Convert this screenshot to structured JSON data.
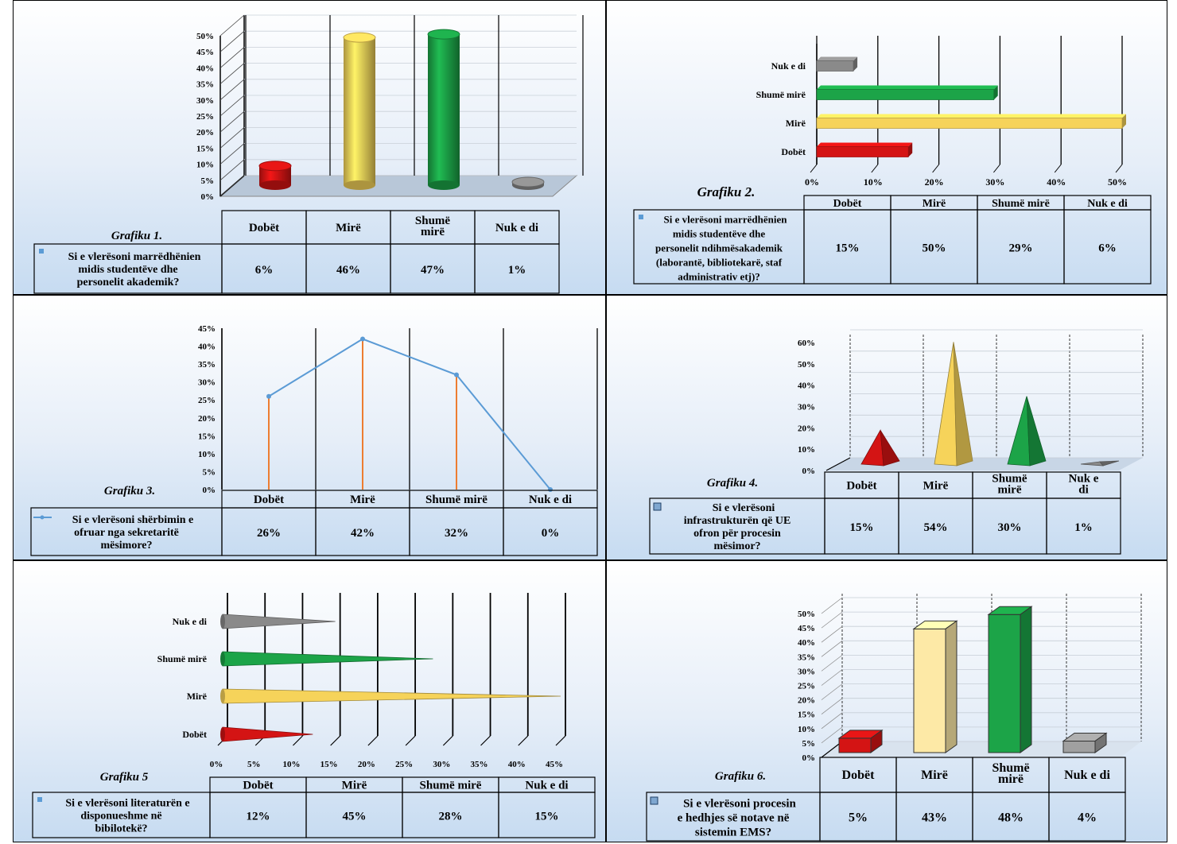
{
  "charts": [
    {
      "type": "bar",
      "style": "cylinder-3d",
      "title": "Grafiku 1.",
      "categories": [
        "Dobët",
        "Mirë",
        "Shumë mirë",
        "Nuk e di"
      ],
      "values": [
        6,
        46,
        47,
        1
      ],
      "value_labels": [
        "6%",
        "46%",
        "47%",
        "1%"
      ],
      "yticks": [
        "0%",
        "5%",
        "10%",
        "15%",
        "20%",
        "25%",
        "30%",
        "35%",
        "40%",
        "45%",
        "50%"
      ],
      "ylim": [
        0,
        50
      ],
      "series": "Si e vlerësoni marrëdhënien midis studentëve dhe personelit akademik?",
      "colors": [
        "#d41414",
        "#f6d35a",
        "#1ca448",
        "#8a8a8a"
      ]
    },
    {
      "type": "bar",
      "style": "horizontal-3d",
      "title": "Grafiku 2.",
      "categories": [
        "Dobët",
        "Mirë",
        "Shumë mirë",
        "Nuk e di"
      ],
      "values": [
        15,
        50,
        29,
        6
      ],
      "value_labels": [
        "15%",
        "50%",
        "29%",
        "6%"
      ],
      "xticks": [
        "0%",
        "10%",
        "20%",
        "30%",
        "40%",
        "50%"
      ],
      "xlim": [
        0,
        50
      ],
      "series": "Si e vlerësoni marrëdhënien midis studentëve dhe personelit ndihmësakademik (laborantë, bibliotekarë, staf administrativ etj)?",
      "colors": [
        "#d41414",
        "#f6d35a",
        "#1ca448",
        "#8a8a8a"
      ]
    },
    {
      "type": "line",
      "style": "drop-lines",
      "title": "Grafiku 3.",
      "categories": [
        "Dobët",
        "Mirë",
        "Shumë mirë",
        "Nuk e di"
      ],
      "values": [
        26,
        42,
        32,
        0
      ],
      "value_labels": [
        "26%",
        "42%",
        "32%",
        "0%"
      ],
      "yticks": [
        "0%",
        "5%",
        "10%",
        "15%",
        "20%",
        "25%",
        "30%",
        "35%",
        "40%",
        "45%"
      ],
      "ylim": [
        0,
        45
      ],
      "series": "Si e vlerësoni shërbimin e ofruar nga sekretaritë mësimore?",
      "colors": [
        "#5b9bd5",
        "#ed7d31"
      ]
    },
    {
      "type": "bar",
      "style": "pyramid-3d",
      "title": "Grafiku 4.",
      "categories": [
        "Dobët",
        "Mirë",
        "Shumë mirë",
        "Nuk e di"
      ],
      "values": [
        15,
        54,
        30,
        1
      ],
      "value_labels": [
        "15%",
        "54%",
        "30%",
        "1%"
      ],
      "yticks": [
        "0%",
        "10%",
        "20%",
        "30%",
        "40%",
        "50%",
        "60%"
      ],
      "ylim": [
        0,
        60
      ],
      "series": "Si e vlerësoni infrastrukturën që UE ofron për procesin mësimor?",
      "colors": [
        "#d41414",
        "#f6d35a",
        "#1ca448",
        "#8a8a8a"
      ]
    },
    {
      "type": "bar",
      "style": "horizontal-cone",
      "title": "Grafiku 5",
      "categories": [
        "Dobët",
        "Mirë",
        "Shumë mirë",
        "Nuk e di"
      ],
      "values": [
        12,
        45,
        28,
        15
      ],
      "value_labels": [
        "12%",
        "45%",
        "28%",
        "15%"
      ],
      "xticks": [
        "0%",
        "5%",
        "10%",
        "15%",
        "20%",
        "25%",
        "30%",
        "35%",
        "40%",
        "45%"
      ],
      "xlim": [
        0,
        45
      ],
      "series": "Si e vlerësoni literaturën e disponueshme në bibilotekë?",
      "colors": [
        "#d41414",
        "#f6d35a",
        "#1ca448",
        "#8a8a8a"
      ]
    },
    {
      "type": "bar",
      "style": "box-3d",
      "title": "Grafiku 6.",
      "categories": [
        "Dobët",
        "Mirë",
        "Shumë mirë",
        "Nuk e di"
      ],
      "values": [
        5,
        43,
        48,
        4
      ],
      "value_labels": [
        "5%",
        "43%",
        "48%",
        "4%"
      ],
      "yticks": [
        "0%",
        "5%",
        "10%",
        "15%",
        "20%",
        "25%",
        "30%",
        "35%",
        "40%",
        "45%",
        "50%"
      ],
      "ylim": [
        0,
        50
      ],
      "series": "Si e vlerësoni procesin e hedhjes së notave në sistemin EMS?",
      "colors": [
        "#d41414",
        "#fde9a6",
        "#1ca448",
        "#a0a0a0"
      ]
    }
  ]
}
